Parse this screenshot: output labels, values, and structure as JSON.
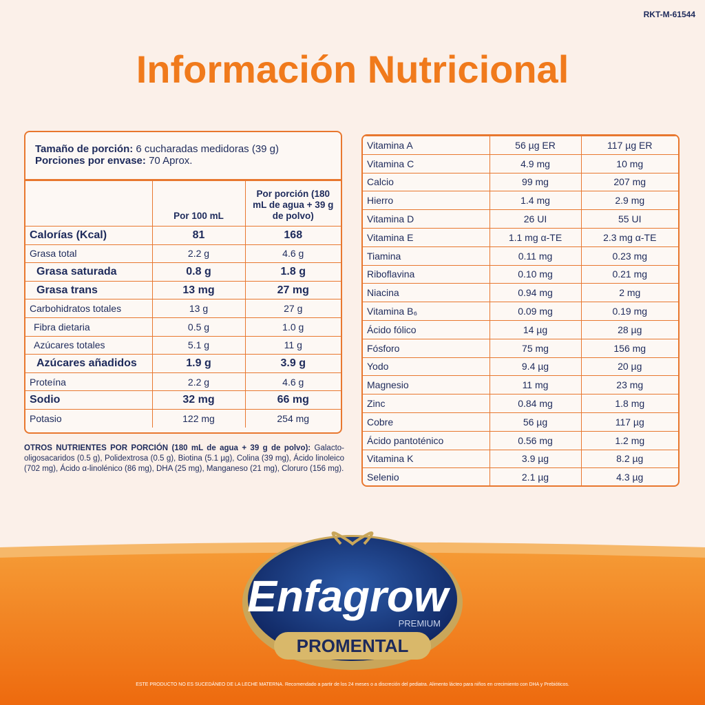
{
  "code": "RKT-M-61544",
  "title": "Información Nutricional",
  "serving": {
    "size_label": "Tamaño de porción:",
    "size_value": "6 cucharadas medidoras (39 g)",
    "count_label": "Porciones por envase:",
    "count_value": "70 Aprox."
  },
  "left_table": {
    "headers": [
      "Por 100 mL",
      "Por porción (180 mL de agua + 39 g de polvo)"
    ],
    "rows": [
      {
        "cells": [
          "Calorías (Kcal)",
          "81",
          "168"
        ],
        "style": "bold"
      },
      {
        "cells": [
          "Grasa total",
          "2.2 g",
          "4.6 g"
        ],
        "style": "normal"
      },
      {
        "cells": [
          "Grasa saturada",
          "0.8 g",
          "1.8 g"
        ],
        "style": "bold-indent"
      },
      {
        "cells": [
          "Grasa trans",
          "13 mg",
          "27 mg"
        ],
        "style": "bold-indent"
      },
      {
        "cells": [
          "Carbohidratos totales",
          "13 g",
          "27 g"
        ],
        "style": "normal"
      },
      {
        "cells": [
          "Fibra dietaria",
          "0.5 g",
          "1.0 g"
        ],
        "style": "indent"
      },
      {
        "cells": [
          "Azúcares totales",
          "5.1 g",
          "11 g"
        ],
        "style": "indent"
      },
      {
        "cells": [
          "Azúcares añadidos",
          "1.9 g",
          "3.9 g"
        ],
        "style": "bold-indent"
      },
      {
        "cells": [
          "Proteína",
          "2.2 g",
          "4.6 g"
        ],
        "style": "normal"
      },
      {
        "cells": [
          "Sodio",
          "32 mg",
          "66 mg"
        ],
        "style": "bold"
      },
      {
        "cells": [
          "Potasio",
          "122 mg",
          "254 mg"
        ],
        "style": "normal"
      }
    ]
  },
  "other_nutrients": {
    "heading": "OTROS NUTRIENTES POR PORCIÓN (180 mL de agua + 39 g de polvo):",
    "text": "Galacto-oligosacaridos (0.5 g), Polidextrosa (0.5 g), Biotina (5.1 µg), Colina (39 mg), Ácido linoleico (702 mg), Ácido α-linolénico (86 mg), DHA (25 mg), Manganeso (21 mg), Cloruro (156 mg)."
  },
  "right_table": {
    "rows": [
      [
        "Vitamina A",
        "56 µg ER",
        "117 µg ER"
      ],
      [
        "Vitamina C",
        "4.9 mg",
        "10 mg"
      ],
      [
        "Calcio",
        "99 mg",
        "207 mg"
      ],
      [
        "Hierro",
        "1.4 mg",
        "2.9 mg"
      ],
      [
        "Vitamina D",
        "26 UI",
        "55 UI"
      ],
      [
        "Vitamina E",
        "1.1 mg α-TE",
        "2.3 mg α-TE"
      ],
      [
        "Tiamina",
        "0.11 mg",
        "0.23 mg"
      ],
      [
        "Riboflavina",
        "0.10 mg",
        "0.21 mg"
      ],
      [
        "Niacina",
        "0.94 mg",
        "2 mg"
      ],
      [
        "Vitamina B₆",
        "0.09 mg",
        "0.19 mg"
      ],
      [
        "Ácido fólico",
        "14 µg",
        "28 µg"
      ],
      [
        "Fósforo",
        "75 mg",
        "156 mg"
      ],
      [
        "Yodo",
        "9.4 µg",
        "20 µg"
      ],
      [
        "Magnesio",
        "11 mg",
        "23 mg"
      ],
      [
        "Zinc",
        "0.84 mg",
        "1.8 mg"
      ],
      [
        "Cobre",
        "56 µg",
        "117 µg"
      ],
      [
        "Ácido pantoténico",
        "0.56 mg",
        "1.2 mg"
      ],
      [
        "Vitamina K",
        "3.9 µg",
        "8.2 µg"
      ],
      [
        "Selenio",
        "2.1 µg",
        "4.3 µg"
      ]
    ]
  },
  "brand": {
    "name": "Enfagrow",
    "tier": "PREMIUM",
    "line": "PROMENTAL"
  },
  "disclaimer": "ESTE PRODUCTO NO ES SUCEDÁNEO DE LA LECHE MATERNA. Recomendado a partir de los 24 meses o a discreción del pediatra. Alimento lácteo para niños en crecimiento con DHA y Prebióticos."
}
